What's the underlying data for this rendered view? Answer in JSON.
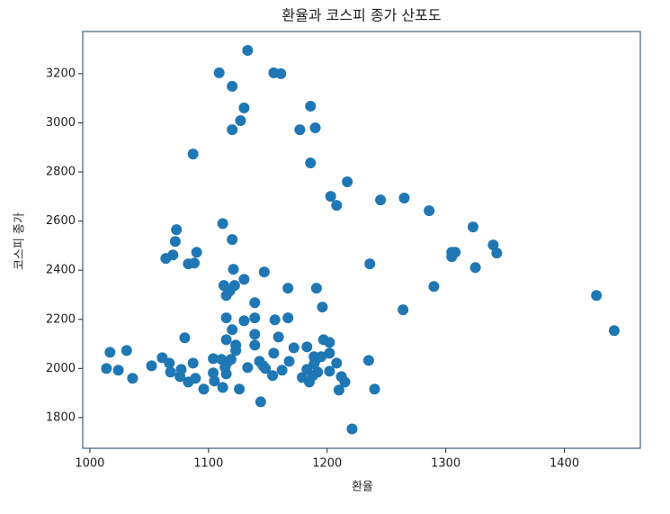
{
  "chart_data": {
    "type": "scatter",
    "title": "환율과 코스피 종가 산포도",
    "x_label": "환율",
    "y_label": "코스피 종가",
    "color": "#1f77b4",
    "xlim": [
      994,
      1464
    ],
    "ylim": [
      1675,
      3372
    ],
    "xticks": [
      1000,
      1100,
      1200,
      1300,
      1400
    ],
    "yticks": [
      1800,
      2000,
      2200,
      2400,
      2600,
      2800,
      3000,
      3200
    ],
    "x": [
      1133,
      1109,
      1155,
      1161,
      1120,
      1186,
      1130,
      1127,
      1120,
      1177,
      1190,
      1087,
      1186,
      1217,
      1203,
      1208,
      1245,
      1265,
      1286,
      1323,
      1112,
      1073,
      1072,
      1120,
      1090,
      1070,
      1064,
      1083,
      1088,
      1340,
      1343,
      1305,
      1308,
      1305,
      1325,
      1236,
      1121,
      1147,
      1130,
      1122,
      1113,
      1118,
      1115,
      1167,
      1191,
      1290,
      1427,
      1139,
      1196,
      1264,
      1115,
      1130,
      1139,
      1156,
      1167,
      1442,
      1120,
      1080,
      1139,
      1159,
      1115,
      1197,
      1202,
      1172,
      1183,
      1123,
      1123,
      1139,
      1155,
      1189,
      1195,
      1202,
      1017,
      1031,
      1061,
      1067,
      1052,
      1087,
      1104,
      1111,
      1119,
      1116,
      1143,
      1146,
      1168,
      1190,
      1189,
      1208,
      1235,
      1014,
      1024,
      1068,
      1077,
      1114,
      1133,
      1148,
      1162,
      1183,
      1192,
      1202,
      1104,
      1115,
      1076,
      1089,
      1154,
      1179,
      1188,
      1212,
      1036,
      1105,
      1083,
      1185,
      1215,
      1112,
      1096,
      1126,
      1210,
      1240,
      1144,
      1221
    ],
    "values": [
      3295,
      3204,
      3204,
      3200,
      3149,
      3068,
      3061,
      3009,
      2972,
      2972,
      2980,
      2873,
      2837,
      2760,
      2701,
      2664,
      2686,
      2694,
      2642,
      2576,
      2590,
      2565,
      2517,
      2525,
      2473,
      2462,
      2448,
      2426,
      2429,
      2503,
      2470,
      2473,
      2473,
      2455,
      2411,
      2426,
      2404,
      2393,
      2363,
      2338,
      2338,
      2316,
      2297,
      2327,
      2327,
      2334,
      2297,
      2268,
      2250,
      2239,
      2206,
      2194,
      2206,
      2198,
      2206,
      2154,
      2158,
      2125,
      2139,
      2128,
      2117,
      2117,
      2106,
      2084,
      2088,
      2095,
      2073,
      2095,
      2062,
      2048,
      2048,
      2062,
      2066,
      2073,
      2044,
      2022,
      2011,
      2022,
      2040,
      2037,
      2037,
      2026,
      2029,
      2011,
      2029,
      2033,
      2018,
      2022,
      2033,
      2000,
      1993,
      1985,
      1996,
      2004,
      2004,
      2000,
      1993,
      1996,
      1985,
      1989,
      1982,
      1978,
      1967,
      1960,
      1971,
      1963,
      1971,
      1967,
      1960,
      1949,
      1945,
      1945,
      1945,
      1923,
      1916,
      1916,
      1912,
      1916,
      1864,
      1754
    ]
  }
}
